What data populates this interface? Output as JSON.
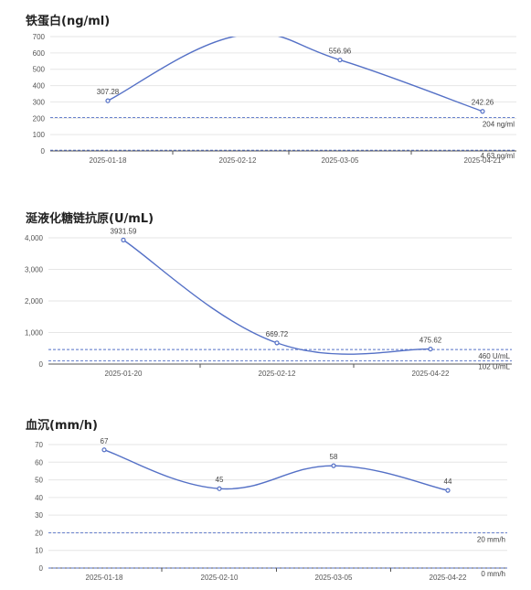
{
  "chart_data": [
    {
      "type": "line",
      "title": "铁蛋白(ng/ml)",
      "x": [
        "2025-01-18",
        "2025-02-12",
        "2025-03-05",
        "2025-04-21"
      ],
      "y": [
        307.28,
        705,
        556.96,
        242.26
      ],
      "point_labels": [
        "307.28",
        "",
        "556.96",
        "242.26"
      ],
      "markers": [
        true,
        false,
        true,
        true
      ],
      "ylim": [
        0,
        700
      ],
      "yticks": [
        "0",
        "100",
        "200",
        "300",
        "400",
        "500",
        "600",
        "700"
      ],
      "ref_lines": [
        {
          "value": 204,
          "label": "204 ng/ml"
        },
        {
          "value": 4.63,
          "label": "4.63 ng/ml"
        }
      ],
      "grid": true,
      "line_color": "#5470c6"
    },
    {
      "type": "line",
      "title": "涎液化糖链抗原(U/mL)",
      "x": [
        "2025-01-20",
        "2025-02-12",
        "2025-04-22"
      ],
      "y": [
        3931.59,
        669.72,
        475.62
      ],
      "point_labels": [
        "3931.59",
        "669.72",
        "475.62"
      ],
      "markers": [
        true,
        true,
        true
      ],
      "ylim": [
        0,
        4000
      ],
      "yticks": [
        "0",
        "1,000",
        "2,000",
        "3,000",
        "4,000"
      ],
      "ref_lines": [
        {
          "value": 460,
          "label": "460 U/mL"
        },
        {
          "value": 102,
          "label": "102 U/mL"
        }
      ],
      "grid": true,
      "line_color": "#5470c6"
    },
    {
      "type": "line",
      "title": "血沉(mm/h)",
      "x": [
        "2025-01-18",
        "2025-02-10",
        "2025-03-05",
        "2025-04-22"
      ],
      "y": [
        67,
        45,
        58,
        44
      ],
      "point_labels": [
        "67",
        "45",
        "58",
        "44"
      ],
      "markers": [
        true,
        true,
        true,
        true
      ],
      "ylim": [
        0,
        70
      ],
      "yticks": [
        "0",
        "10",
        "20",
        "30",
        "40",
        "50",
        "60",
        "70"
      ],
      "ref_lines": [
        {
          "value": 20,
          "label": "20 mm/h"
        },
        {
          "value": 0,
          "label": "0 mm/h"
        }
      ],
      "grid": true,
      "line_color": "#5470c6"
    }
  ]
}
